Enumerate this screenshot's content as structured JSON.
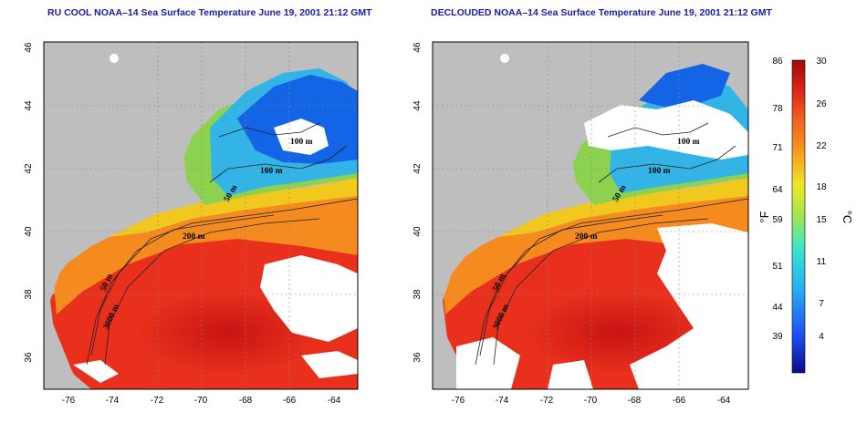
{
  "left_panel": {
    "title": "RU COOL NOAA–14 Sea Surface Temperature June 19, 2001 21:12 GMT",
    "contour_labels": [
      "100 m",
      "100 m",
      "50 m",
      "200 m",
      "50 m",
      "3000 m"
    ]
  },
  "right_panel": {
    "title": "DECLOUDED NOAA–14 Sea Surface Temperature June 19, 2001 21:12 GMT",
    "contour_labels": [
      "100 m",
      "100 m",
      "50 m",
      "200 m",
      "50 m",
      "3000 m"
    ]
  },
  "axes": {
    "lat_ticks": [
      "46",
      "44",
      "42",
      "40",
      "38",
      "36"
    ],
    "lon_ticks": [
      "-76",
      "-74",
      "-72",
      "-70",
      "-68",
      "-66",
      "-64"
    ],
    "lon_range": [
      -77,
      -63
    ],
    "lat_range": [
      35,
      46
    ]
  },
  "colorbar": {
    "fahrenheit_ticks": [
      "86",
      "78",
      "71",
      "64",
      "59",
      "51",
      "44",
      "39"
    ],
    "celsius_ticks": [
      "30",
      "26",
      "22",
      "18",
      "15",
      "11",
      "7",
      "4"
    ],
    "fahrenheit_unit": "°F",
    "celsius_unit": "°C",
    "range_c": [
      0,
      30
    ]
  },
  "colors": {
    "land": "#bebebe",
    "cloud": "#ffffff",
    "warm": "#e8301c",
    "hot": "#d21414",
    "orange": "#f58a1e",
    "yellow": "#f0c81e",
    "green": "#8cd250",
    "cyan": "#32b4e6",
    "blue": "#1464e6",
    "title": "#1a1aa8"
  }
}
